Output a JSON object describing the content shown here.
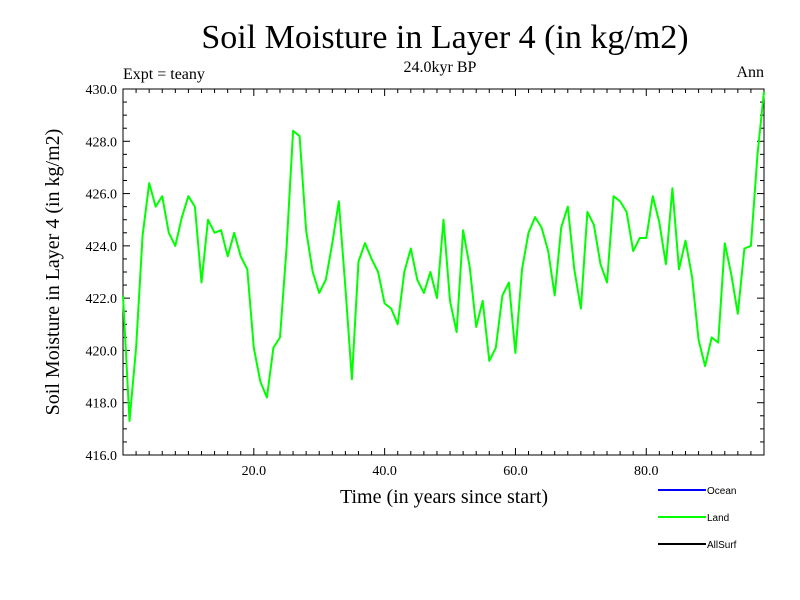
{
  "header": {
    "title": "Soil Moisture in Layer 4 (in kg/m2)",
    "subtitle": "24.0kyr BP",
    "left_label": "Expt = teany",
    "right_label": "Ann"
  },
  "chart_data": {
    "type": "line",
    "title": "Soil Moisture in Layer 4 (in kg/m2)",
    "xlabel": "Time (in years since start)",
    "ylabel": "Soil Moisture in Layer 4 (in kg/m2)",
    "xlim": [
      0,
      98
    ],
    "ylim": [
      416,
      430
    ],
    "xticks": [
      20,
      40,
      60,
      80
    ],
    "xtick_labels": [
      "20.0",
      "40.0",
      "60.0",
      "80.0"
    ],
    "yticks": [
      416,
      418,
      420,
      422,
      424,
      426,
      428,
      430
    ],
    "ytick_labels": [
      "416.0",
      "418.0",
      "420.0",
      "422.0",
      "424.0",
      "426.0",
      "428.0",
      "430.0"
    ],
    "legend": [
      {
        "name": "Ocean",
        "color": "#0000ff"
      },
      {
        "name": "Land",
        "color": "#00ff00"
      },
      {
        "name": "AllSurf",
        "color": "#000000"
      }
    ],
    "series": [
      {
        "name": "Land",
        "color": "#00ff00",
        "x": [
          0,
          1,
          2,
          3,
          4,
          5,
          6,
          7,
          8,
          9,
          10,
          11,
          12,
          13,
          14,
          15,
          16,
          17,
          18,
          19,
          20,
          21,
          22,
          23,
          24,
          25,
          26,
          27,
          28,
          29,
          30,
          31,
          32,
          33,
          34,
          35,
          36,
          37,
          38,
          39,
          40,
          41,
          42,
          43,
          44,
          45,
          46,
          47,
          48,
          49,
          50,
          51,
          52,
          53,
          54,
          55,
          56,
          57,
          58,
          59,
          60,
          61,
          62,
          63,
          64,
          65,
          66,
          67,
          68,
          69,
          70,
          71,
          72,
          73,
          74,
          75,
          76,
          77,
          78,
          79,
          80,
          81,
          82,
          83,
          84,
          85,
          86,
          87,
          88,
          89,
          90,
          91,
          92,
          93,
          94,
          95,
          96,
          97,
          98
        ],
        "values": [
          422.1,
          417.3,
          420.1,
          424.4,
          426.4,
          425.5,
          425.9,
          424.5,
          424.0,
          425.1,
          425.9,
          425.5,
          422.6,
          425.0,
          424.5,
          424.6,
          423.6,
          424.5,
          423.6,
          423.1,
          420.1,
          418.8,
          418.2,
          420.1,
          420.5,
          423.9,
          428.4,
          428.2,
          424.6,
          423.0,
          422.2,
          422.7,
          424.1,
          425.7,
          422.4,
          418.9,
          423.4,
          424.1,
          423.5,
          423.0,
          421.8,
          421.6,
          421.0,
          423.0,
          423.9,
          422.7,
          422.2,
          423.0,
          422.0,
          425.0,
          421.9,
          420.7,
          424.6,
          423.2,
          420.9,
          421.9,
          419.6,
          420.1,
          422.1,
          422.6,
          419.9,
          423.1,
          424.5,
          425.1,
          424.7,
          423.8,
          422.1,
          424.7,
          425.5,
          423.1,
          421.6,
          425.3,
          424.8,
          423.3,
          422.6,
          425.9,
          425.7,
          425.3,
          423.8,
          424.3,
          424.3,
          425.9,
          424.9,
          423.3,
          426.2,
          423.1,
          424.2,
          422.8,
          420.4,
          419.4,
          420.5,
          420.3,
          424.1,
          422.9,
          421.4,
          423.9,
          424.0,
          427.5,
          429.9
        ]
      }
    ]
  }
}
